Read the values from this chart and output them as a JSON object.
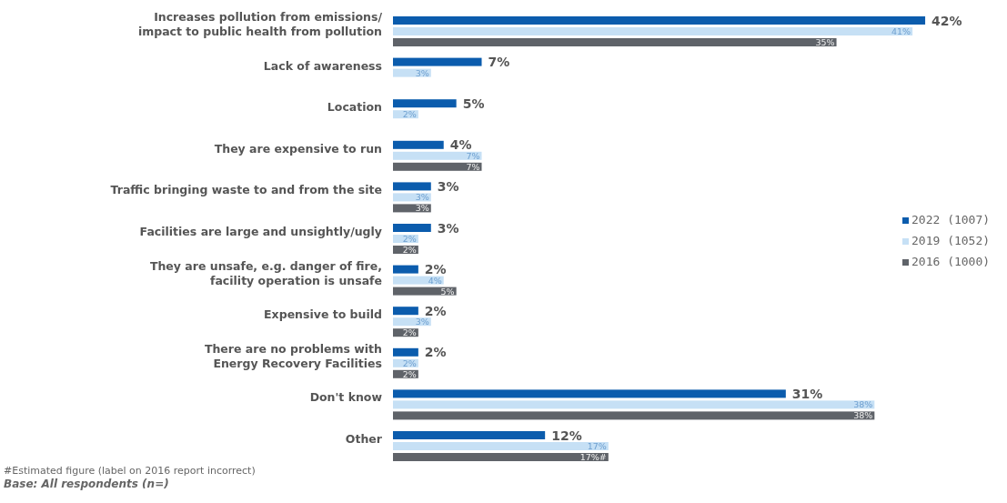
{
  "chart_data": {
    "type": "bar",
    "orientation": "horizontal",
    "categories": [
      "Increases pollution from emissions/\nimpact to public health from pollution",
      "Lack of awareness",
      "Location",
      "They are expensive to run",
      "Traffic bringing waste to and from the site",
      "Facilities are large and unsightly/ugly",
      "They are unsafe, e.g. danger of fire,\nfacility operation is unsafe",
      "Expensive to build",
      "There are no problems with\nEnergy Recovery Facilities",
      "Don't know",
      "Other"
    ],
    "series": [
      {
        "name": "2022 (1007)",
        "color": "#0b5cad",
        "values": [
          42,
          7,
          5,
          4,
          3,
          3,
          2,
          2,
          2,
          31,
          12
        ],
        "value_labels": [
          "42%",
          "7%",
          "5%",
          "4%",
          "3%",
          "3%",
          "2%",
          "2%",
          "2%",
          "31%",
          "12%"
        ]
      },
      {
        "name": "2019 (1052)",
        "color": "#c6e0f5",
        "values": [
          41,
          3,
          2,
          7,
          3,
          2,
          4,
          3,
          2,
          38,
          17
        ],
        "value_labels": [
          "41%",
          "3%",
          "2%",
          "7%",
          "3%",
          "2%",
          "4%",
          "3%",
          "2%",
          "38%",
          "17%"
        ]
      },
      {
        "name": "2016 (1000)",
        "color": "#5f6369",
        "values": [
          35,
          null,
          null,
          7,
          3,
          2,
          5,
          2,
          2,
          38,
          17
        ],
        "value_labels": [
          "35%",
          null,
          null,
          "7%",
          "3%",
          "2%",
          "5%",
          "2%",
          "2%",
          "38%",
          "17%#"
        ]
      }
    ],
    "legend": "right",
    "annotations": [
      "#Estimated figure (label on 2016 report incorrect)",
      "Base: All respondents (n=)"
    ]
  }
}
